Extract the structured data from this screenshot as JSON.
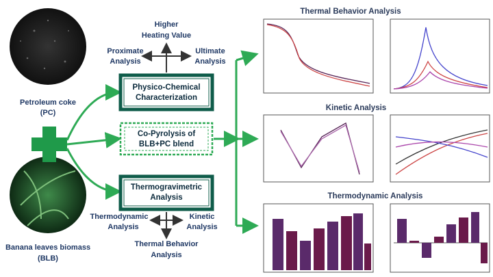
{
  "materials": [
    {
      "lines": [
        "Petroleum coke",
        "(PC)"
      ]
    },
    {
      "lines": [
        "Banana leaves biomass",
        "(BLB)"
      ]
    }
  ],
  "boxes": [
    {
      "lines": [
        "Physico-Chemical",
        "Characterization"
      ]
    },
    {
      "lines": [
        "Co-Pyrolysis of",
        "BLB+PC blend"
      ]
    },
    {
      "lines": [
        "Thermogravimetric",
        "Analysis"
      ]
    }
  ],
  "top_outputs": {
    "up": [
      "Higher",
      "Heating Value"
    ],
    "left": [
      "Proximate",
      "Analysis"
    ],
    "right": [
      "Ultimate",
      "Analysis"
    ]
  },
  "bottom_outputs": {
    "left": [
      "Thermodynamic",
      "Analysis"
    ],
    "right": [
      "Kinetic",
      "Analysis"
    ],
    "down": [
      "Thermal  Behavior",
      "Analysis"
    ]
  },
  "sections": [
    "Thermal  Behavior Analysis",
    "Kinetic Analysis",
    "Thermodynamic Analysis"
  ]
}
